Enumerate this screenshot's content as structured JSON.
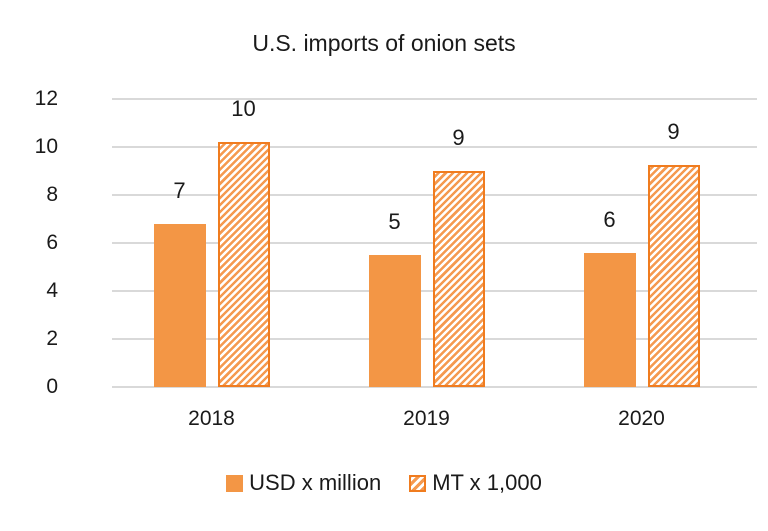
{
  "chart_data": {
    "type": "bar",
    "title": "U.S. imports of onion sets",
    "xlabel": "",
    "ylabel": "",
    "categories": [
      "2018",
      "2019",
      "2020"
    ],
    "series": [
      {
        "name": "USD x million",
        "values": [
          6.8,
          5.5,
          5.6
        ],
        "labels": [
          "7",
          "5",
          "6"
        ],
        "style": "solid",
        "color": "#f39645"
      },
      {
        "name": "MT x 1,000",
        "values": [
          10.2,
          9.0,
          9.25
        ],
        "labels": [
          "10",
          "9",
          "9"
        ],
        "style": "hatched",
        "color": "#f07c1f"
      }
    ],
    "ylim": [
      0,
      12
    ],
    "yticks": [
      "0",
      "2",
      "4",
      "6",
      "8",
      "10",
      "12"
    ],
    "grid": true,
    "legend_position": "bottom"
  }
}
